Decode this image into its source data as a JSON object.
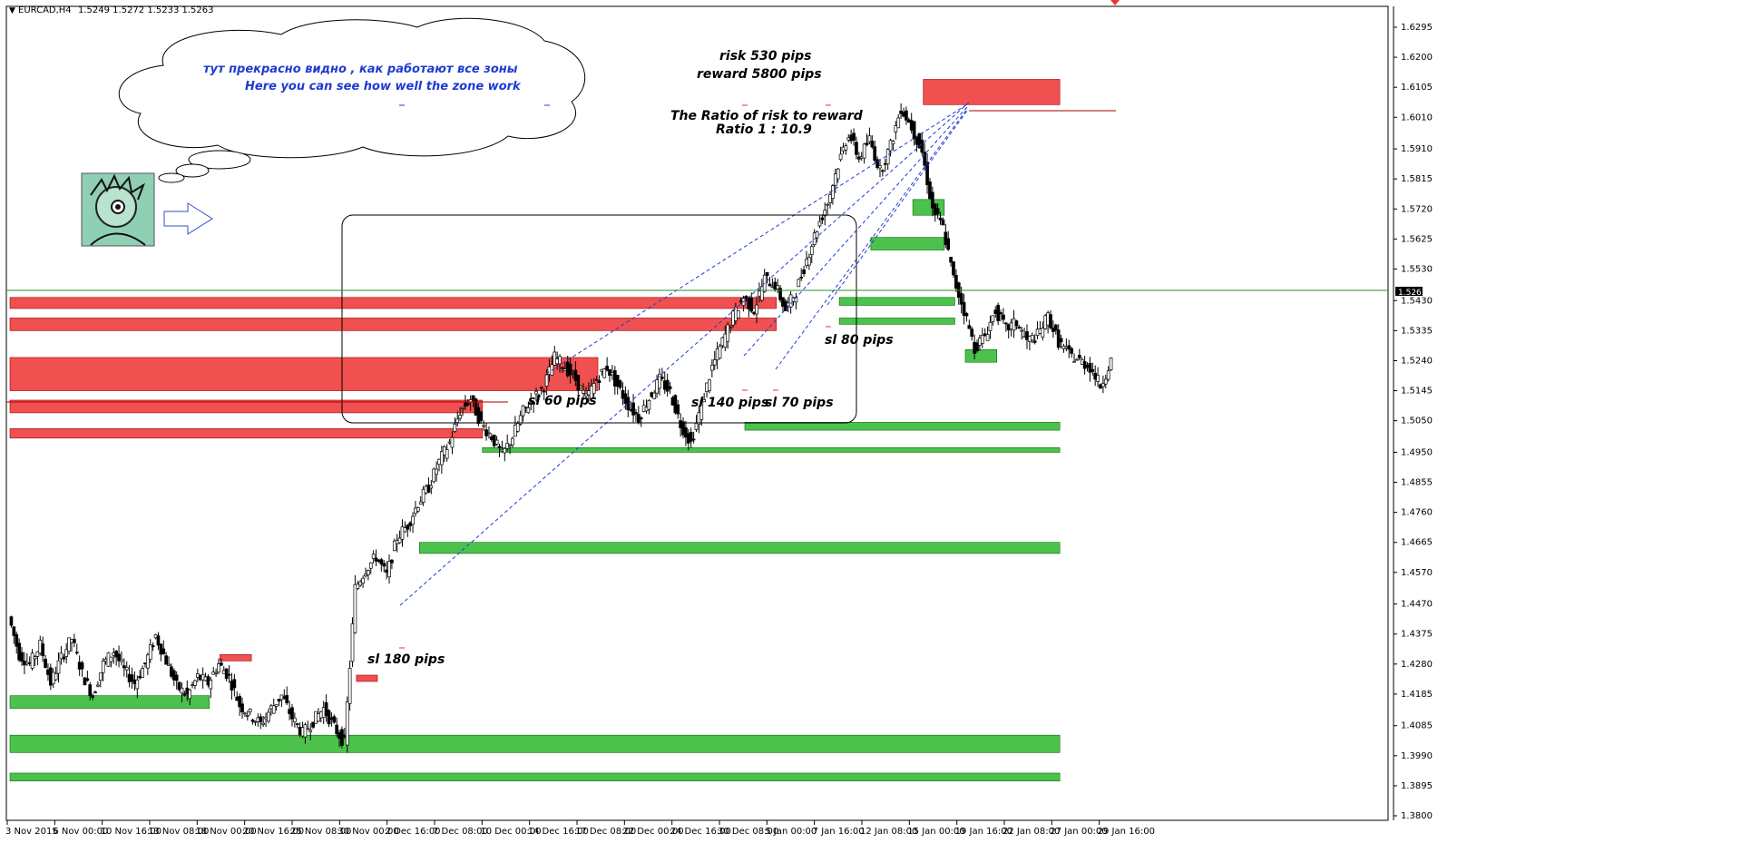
{
  "window": {
    "title": "EURCAD,H4",
    "ohlc": "1.5249 1.5272 1.5233 1.5263"
  },
  "annotations": {
    "bubble_ru": "тут прекрасно   видно , как работают все зоны",
    "bubble_en": "Here you can see how well the zone work",
    "risk": "risk  530 pips",
    "reward": "reward  5800 pips",
    "ratio_title": "The Ratio of risk to reward",
    "ratio": "Ratio 1 : 10.9",
    "sl_180": "sl 180 pips",
    "sl_60": "sl 60 pips",
    "sl_140": "sl 140 pips",
    "sl_70": "sl 70 pips",
    "sl_80": "sl 80   pips"
  },
  "current_price_label": "1.5263",
  "colors": {
    "supply": "#f05050",
    "demand": "#4cc24c",
    "candle": "#000000",
    "arrow": "#3050d0",
    "trendline": "#1f3bd1",
    "price_line": "#2e8b2e"
  },
  "chart_data": {
    "type": "candlestick",
    "symbol": "EURCAD",
    "timeframe": "H4",
    "y_ticks": [
      "1.6295",
      "1.6200",
      "1.6105",
      "1.6010",
      "1.5910",
      "1.5815",
      "1.5720",
      "1.5625",
      "1.5530",
      "1.5430",
      "1.5335",
      "1.5240",
      "1.5145",
      "1.5050",
      "1.4950",
      "1.4855",
      "1.4760",
      "1.4665",
      "1.4570",
      "1.4470",
      "1.4375",
      "1.4280",
      "1.4185",
      "1.4085",
      "1.3990",
      "1.3895",
      "1.3800"
    ],
    "x_ticks": [
      "3 Nov 2015",
      "6 Nov 00:00",
      "10 Nov 16:00",
      "13 Nov 08:00",
      "18 Nov 00:00",
      "20 Nov 16:00",
      "25 Nov 08:00",
      "30 Nov 00:00",
      "2 Dec 16:00",
      "7 Dec 08:00",
      "10 Dec 00:00",
      "14 Dec 16:00",
      "17 Dec 08:00",
      "22 Dec 00:00",
      "24 Dec 16:00",
      "30 Dec 08:00",
      "5 Jan 00:00",
      "7 Jan 16:00",
      "12 Jan 08:00",
      "15 Jan 00:00",
      "19 Jan 16:00",
      "22 Jan 08:00",
      "27 Jan 00:00",
      "29 Jan 16:00"
    ],
    "ylim": [
      1.38,
      1.6295
    ],
    "price_path": [
      [
        0,
        1.443
      ],
      [
        1,
        1.431
      ],
      [
        2,
        1.428
      ],
      [
        3,
        1.434
      ],
      [
        4,
        1.422
      ],
      [
        5,
        1.43
      ],
      [
        6,
        1.436
      ],
      [
        7,
        1.425
      ],
      [
        8,
        1.418
      ],
      [
        9,
        1.428
      ],
      [
        10,
        1.432
      ],
      [
        11,
        1.426
      ],
      [
        12,
        1.422
      ],
      [
        13,
        1.428
      ],
      [
        14,
        1.437
      ],
      [
        15,
        1.429
      ],
      [
        16,
        1.421
      ],
      [
        17,
        1.418
      ],
      [
        18,
        1.424
      ],
      [
        19,
        1.422
      ],
      [
        20,
        1.428
      ],
      [
        21,
        1.424
      ],
      [
        22,
        1.415
      ],
      [
        23,
        1.412
      ],
      [
        24,
        1.409
      ],
      [
        25,
        1.414
      ],
      [
        26,
        1.418
      ],
      [
        27,
        1.411
      ],
      [
        28,
        1.406
      ],
      [
        29,
        1.41
      ],
      [
        30,
        1.414
      ],
      [
        31,
        1.408
      ],
      [
        32,
        1.403
      ],
      [
        33,
        1.452
      ],
      [
        34,
        1.458
      ],
      [
        35,
        1.462
      ],
      [
        36,
        1.456
      ],
      [
        37,
        1.468
      ],
      [
        38,
        1.472
      ],
      [
        39,
        1.479
      ],
      [
        40,
        1.484
      ],
      [
        41,
        1.492
      ],
      [
        42,
        1.498
      ],
      [
        43,
        1.508
      ],
      [
        44,
        1.512
      ],
      [
        45,
        1.504
      ],
      [
        46,
        1.5
      ],
      [
        47,
        1.494
      ],
      [
        48,
        1.5
      ],
      [
        49,
        1.508
      ],
      [
        50,
        1.512
      ],
      [
        51,
        1.516
      ],
      [
        52,
        1.525
      ],
      [
        53,
        1.522
      ],
      [
        54,
        1.518
      ],
      [
        55,
        1.512
      ],
      [
        56,
        1.518
      ],
      [
        57,
        1.522
      ],
      [
        58,
        1.516
      ],
      [
        59,
        1.51
      ],
      [
        60,
        1.506
      ],
      [
        61,
        1.512
      ],
      [
        62,
        1.518
      ],
      [
        63,
        1.514
      ],
      [
        64,
        1.504
      ],
      [
        65,
        1.498
      ],
      [
        66,
        1.51
      ],
      [
        67,
        1.522
      ],
      [
        68,
        1.53
      ],
      [
        69,
        1.538
      ],
      [
        70,
        1.544
      ],
      [
        71,
        1.54
      ],
      [
        72,
        1.55
      ],
      [
        73,
        1.548
      ],
      [
        74,
        1.54
      ],
      [
        75,
        1.546
      ],
      [
        76,
        1.556
      ],
      [
        77,
        1.566
      ],
      [
        78,
        1.574
      ],
      [
        79,
        1.586
      ],
      [
        80,
        1.596
      ],
      [
        81,
        1.588
      ],
      [
        82,
        1.594
      ],
      [
        83,
        1.584
      ],
      [
        84,
        1.592
      ],
      [
        85,
        1.604
      ],
      [
        86,
        1.598
      ],
      [
        87,
        1.59
      ],
      [
        88,
        1.572
      ],
      [
        89,
        1.566
      ],
      [
        90,
        1.55
      ],
      [
        91,
        1.54
      ],
      [
        92,
        1.528
      ],
      [
        93,
        1.532
      ],
      [
        94,
        1.54
      ],
      [
        95,
        1.534
      ],
      [
        96,
        1.536
      ],
      [
        97,
        1.53
      ],
      [
        98,
        1.532
      ],
      [
        99,
        1.538
      ],
      [
        100,
        1.53
      ],
      [
        101,
        1.526
      ],
      [
        102,
        1.524
      ],
      [
        103,
        1.522
      ],
      [
        104,
        1.516
      ],
      [
        105,
        1.524
      ]
    ],
    "supply_zones": [
      {
        "y1": 1.544,
        "y2": 1.5405,
        "x1": 0,
        "x2": 73
      },
      {
        "y1": 1.5375,
        "y2": 1.5335,
        "x1": 0,
        "x2": 73
      },
      {
        "y1": 1.525,
        "y2": 1.5145,
        "x1": 0,
        "x2": 56
      },
      {
        "y1": 1.5115,
        "y2": 1.5075,
        "x1": 0,
        "x2": 45
      },
      {
        "y1": 1.5025,
        "y2": 1.4995,
        "x1": 0,
        "x2": 45
      },
      {
        "y1": 1.613,
        "y2": 1.605,
        "x1": 87,
        "x2": 100
      },
      {
        "y1": 1.4245,
        "y2": 1.4225,
        "x1": 33,
        "x2": 35
      },
      {
        "y1": 1.431,
        "y2": 1.429,
        "x1": 20,
        "x2": 23
      }
    ],
    "demand_zones": [
      {
        "y1": 1.4055,
        "y2": 1.4,
        "x1": 0,
        "x2": 100
      },
      {
        "y1": 1.3935,
        "y2": 1.391,
        "x1": 0,
        "x2": 100
      },
      {
        "y1": 1.418,
        "y2": 1.414,
        "x1": 0,
        "x2": 19
      },
      {
        "y1": 1.4665,
        "y2": 1.463,
        "x1": 39,
        "x2": 100
      },
      {
        "y1": 1.4965,
        "y2": 1.495,
        "x1": 45,
        "x2": 100
      },
      {
        "y1": 1.5045,
        "y2": 1.502,
        "x1": 70,
        "x2": 100
      },
      {
        "y1": 1.563,
        "y2": 1.559,
        "x1": 82,
        "x2": 89
      },
      {
        "y1": 1.575,
        "y2": 1.57,
        "x1": 86,
        "x2": 89
      },
      {
        "y1": 1.544,
        "y2": 1.5415,
        "x1": 79,
        "x2": 90
      },
      {
        "y1": 1.5375,
        "y2": 1.5355,
        "x1": 79,
        "x2": 90
      },
      {
        "y1": 1.5275,
        "y2": 1.5235,
        "x1": 91,
        "x2": 94
      }
    ]
  }
}
